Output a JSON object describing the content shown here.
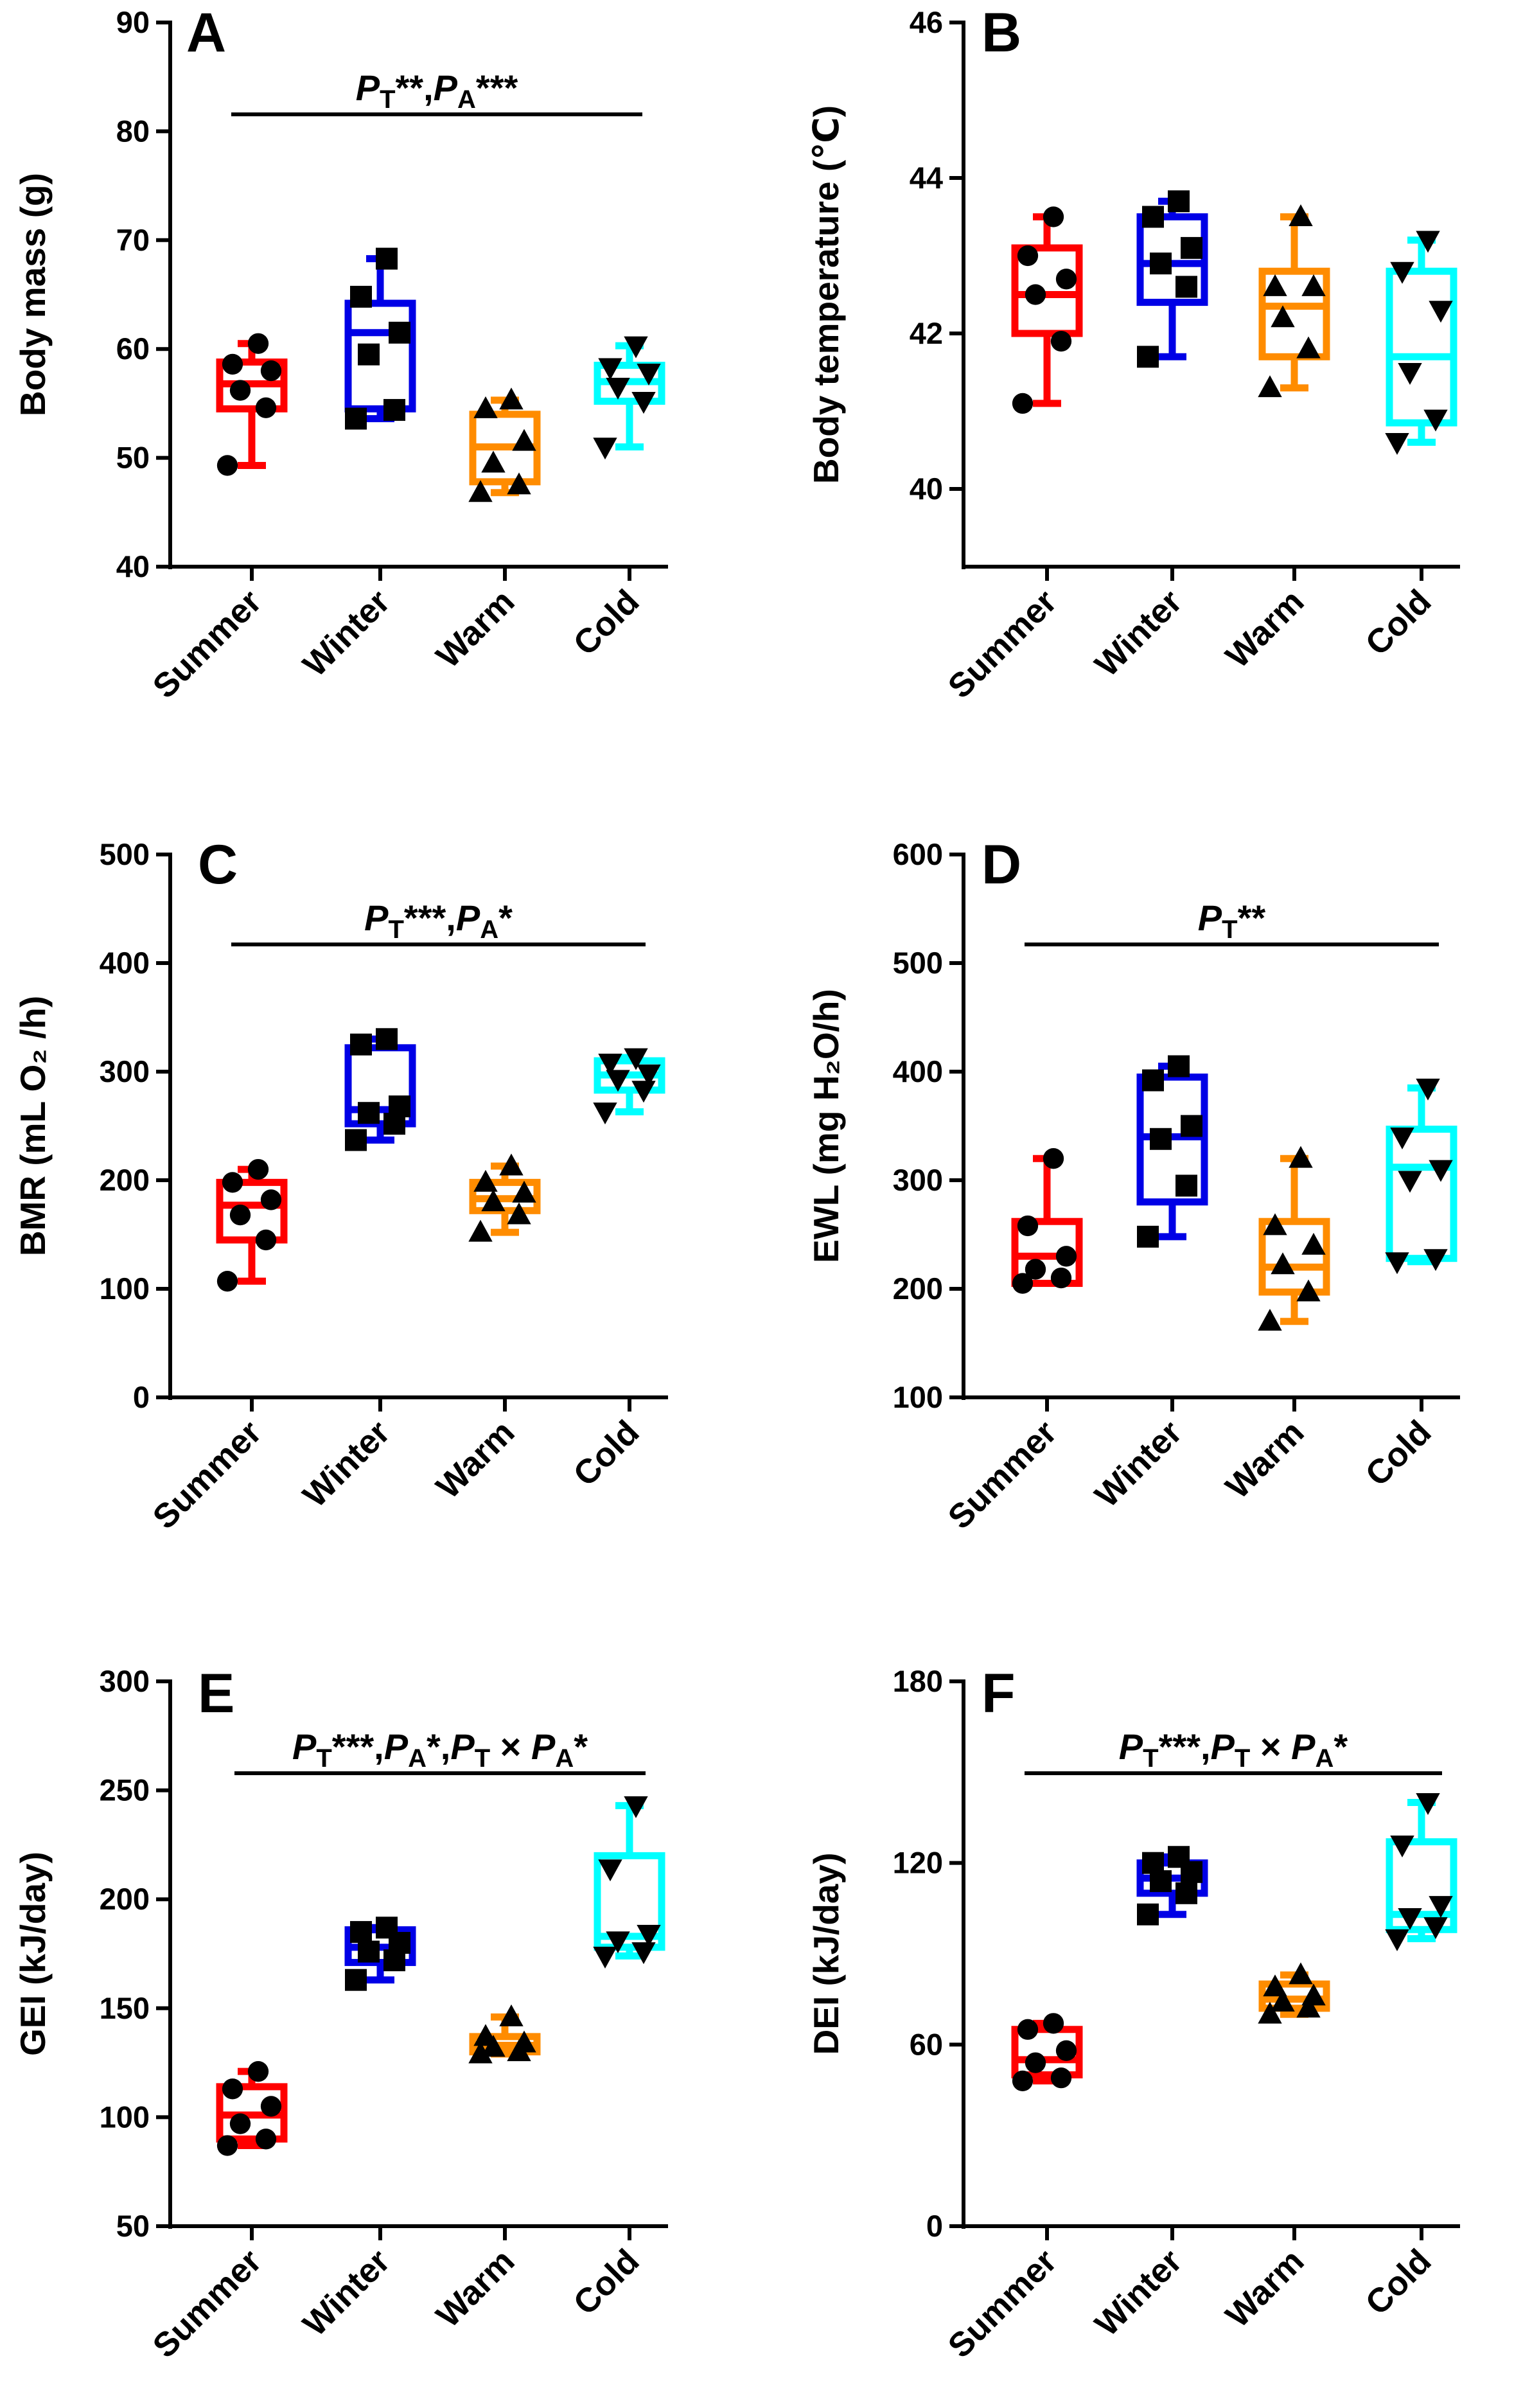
{
  "figure": {
    "groups": [
      "Summer",
      "Winter",
      "Warm",
      "Cold"
    ],
    "colors": {
      "Summer": "#ff0000",
      "Winter": "#0000e6",
      "Warm": "#ff8c00",
      "Cold": "#00ffff"
    },
    "markers": {
      "Summer": "circle",
      "Winter": "square",
      "Warm": "triangle-up",
      "Cold": "triangle-down"
    }
  },
  "chart_data": [
    {
      "type": "box",
      "panel": "A",
      "ylabel": "Body mass (g)",
      "ylim": [
        40,
        90
      ],
      "yticks": [
        40,
        50,
        60,
        70,
        80,
        90
      ],
      "annotation": {
        "parts": [
          {
            "t": "P",
            "style": "italic"
          },
          {
            "t": "T",
            "style": "sub"
          },
          {
            "t": "**,",
            "style": "normal"
          },
          {
            "t": "P",
            "style": "italic"
          },
          {
            "t": "A",
            "style": "sub"
          },
          {
            "t": "***",
            "style": "normal"
          }
        ]
      },
      "categories": [
        "Summer",
        "Winter",
        "Warm",
        "Cold"
      ],
      "boxes": [
        {
          "min": 49.3,
          "q1": 54.5,
          "median": 56.8,
          "q3": 58.8,
          "max": 60.5,
          "points": [
            49.3,
            54.6,
            56.2,
            58.0,
            58.6,
            60.5
          ]
        },
        {
          "min": 53.6,
          "q1": 54.5,
          "median": 61.5,
          "q3": 64.2,
          "max": 68.3,
          "points": [
            53.6,
            54.4,
            59.5,
            61.5,
            64.8,
            68.3
          ]
        },
        {
          "min": 46.8,
          "q1": 47.8,
          "median": 51.0,
          "q3": 54.0,
          "max": 55.3,
          "points": [
            46.8,
            47.5,
            49.5,
            51.5,
            54.5,
            55.3
          ]
        },
        {
          "min": 51.0,
          "q1": 55.2,
          "median": 57.0,
          "q3": 58.5,
          "max": 60.3,
          "points": [
            51.0,
            55.2,
            56.5,
            57.8,
            58.3,
            60.3
          ]
        }
      ]
    },
    {
      "type": "box",
      "panel": "B",
      "ylabel": "Body temperature (℃)",
      "ylim": [
        39,
        46
      ],
      "yticks": [
        40,
        42,
        44,
        46
      ],
      "annotation": null,
      "categories": [
        "Summer",
        "Winter",
        "Warm",
        "Cold"
      ],
      "boxes": [
        {
          "min": 41.1,
          "q1": 42.0,
          "median": 42.5,
          "q3": 43.1,
          "max": 43.5,
          "points": [
            41.1,
            41.9,
            42.5,
            42.7,
            43.0,
            43.5
          ]
        },
        {
          "min": 41.7,
          "q1": 42.4,
          "median": 42.9,
          "q3": 43.5,
          "max": 43.7,
          "points": [
            41.7,
            42.6,
            42.9,
            43.1,
            43.5,
            43.7
          ]
        },
        {
          "min": 41.3,
          "q1": 41.7,
          "median": 42.35,
          "q3": 42.8,
          "max": 43.5,
          "points": [
            41.3,
            41.8,
            42.2,
            42.6,
            42.6,
            43.5
          ]
        },
        {
          "min": 40.6,
          "q1": 40.85,
          "median": 41.7,
          "q3": 42.8,
          "max": 43.2,
          "points": [
            40.6,
            40.9,
            41.5,
            42.3,
            42.8,
            43.2
          ]
        }
      ]
    },
    {
      "type": "box",
      "panel": "C",
      "ylabel": "BMR (mL O₂ /h)",
      "ylim": [
        0,
        500
      ],
      "yticks": [
        0,
        100,
        200,
        300,
        400,
        500
      ],
      "annotation": {
        "parts": [
          {
            "t": "P",
            "style": "italic"
          },
          {
            "t": "T",
            "style": "sub"
          },
          {
            "t": "***,",
            "style": "normal"
          },
          {
            "t": "P",
            "style": "italic"
          },
          {
            "t": "A",
            "style": "sub"
          },
          {
            "t": "*",
            "style": "normal"
          }
        ]
      },
      "categories": [
        "Summer",
        "Winter",
        "Warm",
        "Cold"
      ],
      "boxes": [
        {
          "min": 107,
          "q1": 145,
          "median": 177,
          "q3": 198,
          "max": 210,
          "points": [
            107,
            145,
            168,
            182,
            198,
            210
          ]
        },
        {
          "min": 237,
          "q1": 252,
          "median": 265,
          "q3": 322,
          "max": 330,
          "points": [
            237,
            252,
            262,
            268,
            325,
            330
          ]
        },
        {
          "min": 152,
          "q1": 172,
          "median": 183,
          "q3": 198,
          "max": 213,
          "points": [
            152,
            168,
            180,
            188,
            198,
            213
          ]
        },
        {
          "min": 263,
          "q1": 283,
          "median": 297,
          "q3": 310,
          "max": 313,
          "points": [
            263,
            283,
            293,
            298,
            308,
            313
          ]
        }
      ]
    },
    {
      "type": "box",
      "panel": "D",
      "ylabel": "EWL (mg H₂O/h)",
      "ylim": [
        100,
        600
      ],
      "yticks": [
        100,
        200,
        300,
        400,
        500,
        600
      ],
      "annotation": {
        "parts": [
          {
            "t": "P",
            "style": "italic"
          },
          {
            "t": "T",
            "style": "sub"
          },
          {
            "t": "**",
            "style": "normal"
          }
        ]
      },
      "categories": [
        "Summer",
        "Winter",
        "Warm",
        "Cold"
      ],
      "boxes": [
        {
          "min": 205,
          "q1": 205,
          "median": 230,
          "q3": 262,
          "max": 320,
          "points": [
            205,
            210,
            218,
            230,
            258,
            320
          ]
        },
        {
          "min": 248,
          "q1": 280,
          "median": 340,
          "q3": 395,
          "max": 405,
          "points": [
            248,
            295,
            338,
            350,
            392,
            405
          ]
        },
        {
          "min": 170,
          "q1": 197,
          "median": 220,
          "q3": 262,
          "max": 320,
          "points": [
            170,
            197,
            222,
            240,
            258,
            320
          ]
        },
        {
          "min": 225,
          "q1": 228,
          "median": 312,
          "q3": 347,
          "max": 385,
          "points": [
            225,
            228,
            300,
            310,
            340,
            385
          ]
        }
      ]
    },
    {
      "type": "box",
      "panel": "E",
      "ylabel": "GEI (kJ/day)",
      "ylim": [
        50,
        300
      ],
      "yticks": [
        50,
        100,
        150,
        200,
        250,
        300
      ],
      "annotation": {
        "parts": [
          {
            "t": "P",
            "style": "italic"
          },
          {
            "t": "T",
            "style": "sub"
          },
          {
            "t": "***,",
            "style": "normal"
          },
          {
            "t": "P",
            "style": "italic"
          },
          {
            "t": "A",
            "style": "sub"
          },
          {
            "t": "*,",
            "style": "normal"
          },
          {
            "t": "P",
            "style": "italic"
          },
          {
            "t": "T",
            "style": "sub"
          },
          {
            "t": " × ",
            "style": "normal"
          },
          {
            "t": "P",
            "style": "italic"
          },
          {
            "t": "A",
            "style": "sub"
          },
          {
            "t": "*",
            "style": "normal"
          }
        ]
      },
      "categories": [
        "Summer",
        "Winter",
        "Warm",
        "Cold"
      ],
      "boxes": [
        {
          "min": 87,
          "q1": 90,
          "median": 101,
          "q3": 114,
          "max": 121,
          "points": [
            87,
            90,
            97,
            105,
            113,
            121
          ]
        },
        {
          "min": 163,
          "q1": 171,
          "median": 178,
          "q3": 186,
          "max": 187,
          "points": [
            163,
            172,
            176,
            180,
            185,
            187
          ]
        },
        {
          "min": 129,
          "q1": 130,
          "median": 133,
          "q3": 137,
          "max": 146,
          "points": [
            129,
            130,
            132,
            134,
            137,
            146
          ]
        },
        {
          "min": 174,
          "q1": 178,
          "median": 183,
          "q3": 220,
          "max": 243,
          "points": [
            174,
            176,
            181,
            184,
            214,
            243
          ]
        }
      ]
    },
    {
      "type": "box",
      "panel": "F",
      "ylabel": "DEI (kJ/day)",
      "ylim": [
        0,
        180
      ],
      "yticks": [
        0,
        60,
        120,
        180
      ],
      "annotation": {
        "parts": [
          {
            "t": "P",
            "style": "italic"
          },
          {
            "t": "T",
            "style": "sub"
          },
          {
            "t": "***,",
            "style": "normal"
          },
          {
            "t": "P",
            "style": "italic"
          },
          {
            "t": "T",
            "style": "sub"
          },
          {
            "t": " × ",
            "style": "normal"
          },
          {
            "t": "P",
            "style": "italic"
          },
          {
            "t": "A",
            "style": "sub"
          },
          {
            "t": "*",
            "style": "normal"
          }
        ]
      },
      "categories": [
        "Summer",
        "Winter",
        "Warm",
        "Cold"
      ],
      "boxes": [
        {
          "min": 48,
          "q1": 50,
          "median": 55,
          "q3": 65,
          "max": 67,
          "points": [
            48,
            49,
            54,
            58,
            65,
            67
          ]
        },
        {
          "min": 103,
          "q1": 110,
          "median": 115,
          "q3": 120,
          "max": 122,
          "points": [
            103,
            110,
            114,
            117,
            120,
            122
          ]
        },
        {
          "min": 70,
          "q1": 72,
          "median": 75,
          "q3": 80,
          "max": 83,
          "points": [
            70,
            72,
            74,
            76,
            79,
            83
          ]
        },
        {
          "min": 95,
          "q1": 98,
          "median": 103,
          "q3": 127,
          "max": 140,
          "points": [
            95,
            99,
            102,
            106,
            126,
            140
          ]
        }
      ]
    }
  ]
}
